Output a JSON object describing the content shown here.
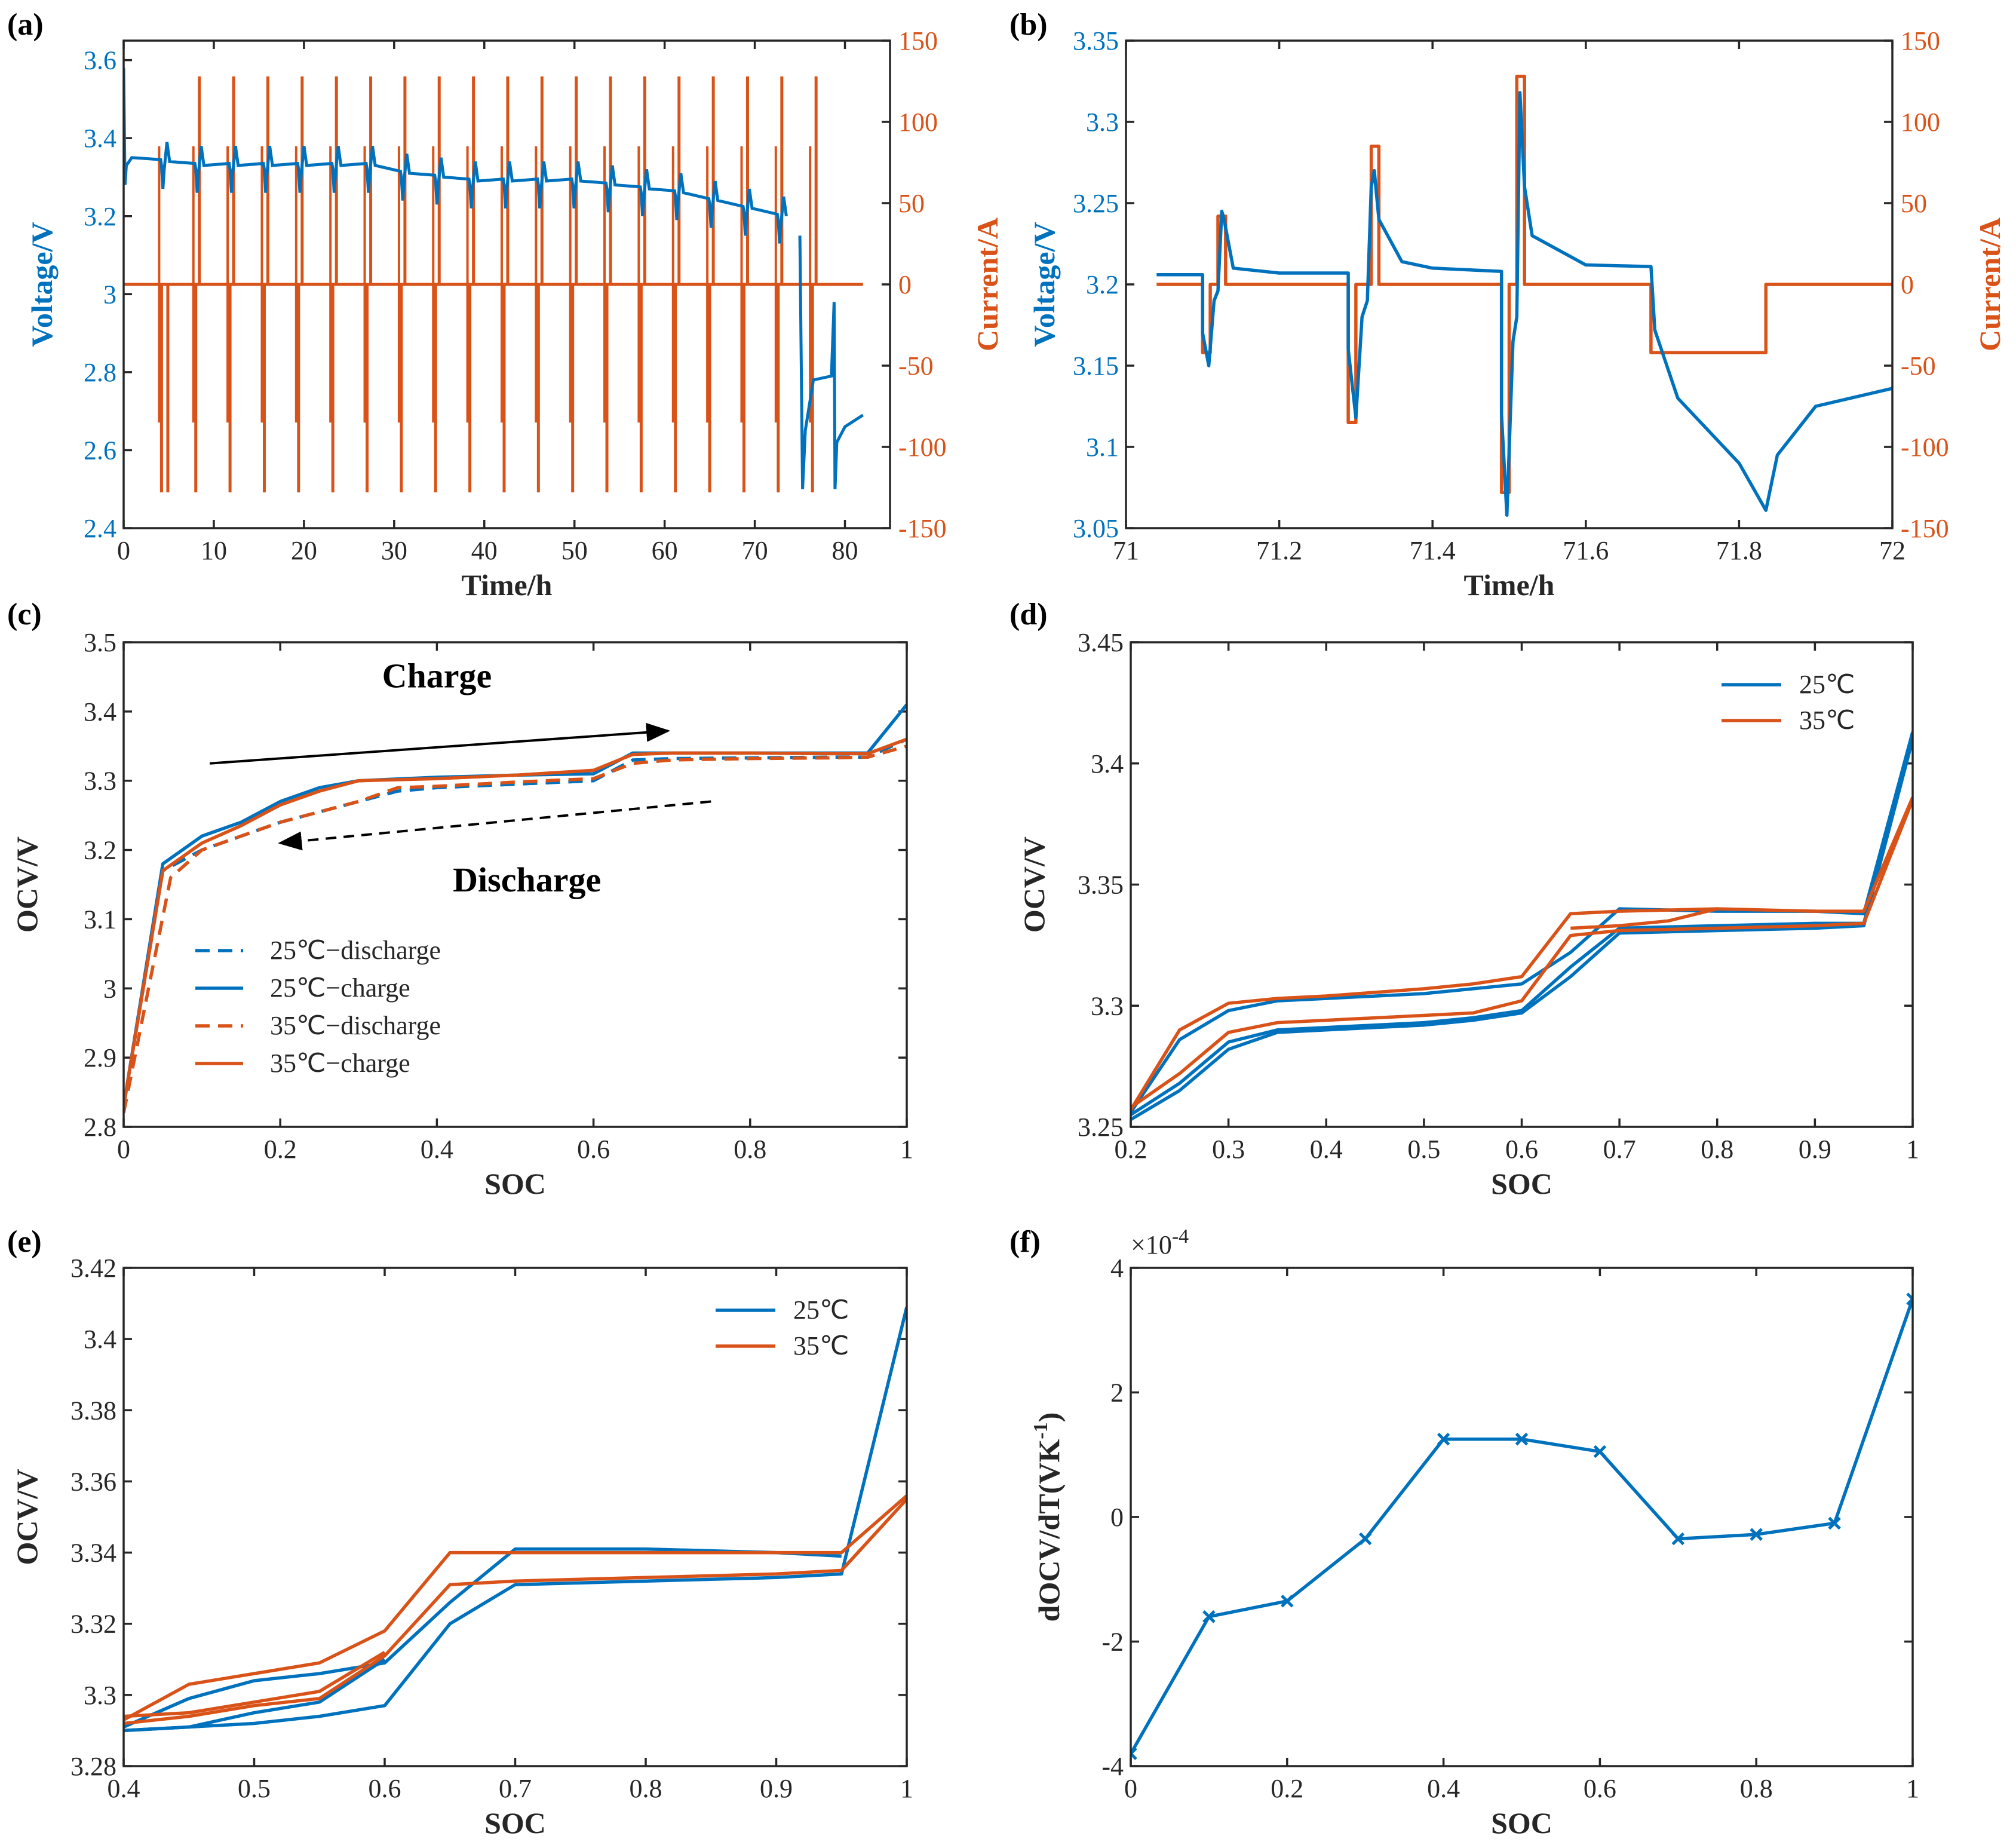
{
  "colors": {
    "blue": "#0072BD",
    "orange": "#D95319",
    "axis": "#262626"
  },
  "chart_data": [
    {
      "panel": "(a)",
      "type": "line",
      "xlabel": "Time/h",
      "ylabel": "Voltage/V",
      "ylabel_right": "Current/A",
      "xlim": [
        0,
        85
      ],
      "ylim": [
        2.4,
        3.65
      ],
      "ylim_right": [
        -150,
        150
      ],
      "xticks": [
        "0",
        "10",
        "20",
        "30",
        "40",
        "50",
        "60",
        "70",
        "80"
      ],
      "yticks": [
        "2.4",
        "2.6",
        "2.8",
        "3",
        "3.2",
        "3.4",
        "3.6"
      ],
      "yticks_right": [
        "-150",
        "-100",
        "-50",
        "0",
        "50",
        "100",
        "150"
      ],
      "pulse_times": [
        4.2,
        8,
        11.8,
        15.6,
        19.4,
        23.2,
        27,
        30.8,
        34.6,
        38.4,
        42.2,
        46,
        49.8,
        53.6,
        57.4,
        61.2,
        65,
        68.8,
        72.6,
        76.4
      ],
      "pulse_current_max": 128,
      "pulse_current_min": -128,
      "series": [
        {
          "name": "Voltage",
          "axis": "left",
          "x": [
            0,
            4.2,
            8,
            11.8,
            15.6,
            19.4,
            23.2,
            27,
            30.8,
            34.6,
            38.4,
            42.2,
            46,
            49.8,
            53.6,
            57.4,
            61.2,
            65,
            68.8,
            72.6,
            75.2,
            78.8,
            82
          ],
          "y": [
            3.35,
            3.34,
            3.33,
            3.33,
            3.33,
            3.33,
            3.33,
            3.33,
            3.31,
            3.3,
            3.29,
            3.29,
            3.29,
            3.29,
            3.28,
            3.27,
            3.26,
            3.24,
            3.22,
            3.2,
            3.15,
            2.65,
            2.68
          ]
        },
        {
          "name": "Current",
          "axis": "right",
          "x": [
            0,
            82
          ],
          "y": [
            0,
            0
          ]
        }
      ]
    },
    {
      "panel": "(b)",
      "type": "line",
      "xlabel": "Time/h",
      "ylabel": "Voltage/V",
      "ylabel_right": "Current/A",
      "xlim": [
        71,
        72
      ],
      "ylim": [
        3.05,
        3.35
      ],
      "ylim_right": [
        -150,
        150
      ],
      "xticks": [
        "71",
        "71.2",
        "71.4",
        "71.6",
        "71.8",
        "72"
      ],
      "yticks": [
        "3.05",
        "3.1",
        "3.15",
        "3.2",
        "3.25",
        "3.3",
        "3.35"
      ],
      "yticks_right": [
        "-150",
        "-100",
        "-50",
        "0",
        "50",
        "100",
        "150"
      ],
      "series": [
        {
          "name": "Voltage",
          "axis": "left",
          "x": [
            71.04,
            71.1,
            71.1,
            71.108,
            71.115,
            71.12,
            71.125,
            71.128,
            71.14,
            71.2,
            71.29,
            71.29,
            71.3,
            71.308,
            71.315,
            71.32,
            71.324,
            71.33,
            71.36,
            71.4,
            71.49,
            71.49,
            71.497,
            71.505,
            71.51,
            71.514,
            71.52,
            71.53,
            71.6,
            71.685,
            71.69,
            71.72,
            71.8,
            71.835,
            71.85,
            71.9,
            72
          ],
          "y": [
            3.206,
            3.206,
            3.17,
            3.15,
            3.19,
            3.196,
            3.245,
            3.24,
            3.21,
            3.207,
            3.207,
            3.16,
            3.118,
            3.18,
            3.19,
            3.26,
            3.27,
            3.24,
            3.214,
            3.21,
            3.208,
            3.12,
            3.058,
            3.165,
            3.18,
            3.318,
            3.26,
            3.23,
            3.212,
            3.211,
            3.172,
            3.13,
            3.09,
            3.061,
            3.095,
            3.125,
            3.136
          ]
        },
        {
          "name": "Current",
          "axis": "right",
          "x": [
            71.04,
            71.1,
            71.1,
            71.11,
            71.11,
            71.12,
            71.12,
            71.13,
            71.13,
            71.29,
            71.29,
            71.3,
            71.3,
            71.32,
            71.32,
            71.33,
            71.33,
            71.49,
            71.49,
            71.5,
            71.5,
            71.51,
            71.51,
            71.52,
            71.52,
            71.685,
            71.685,
            71.835,
            71.835,
            72
          ],
          "y": [
            0,
            0,
            -42,
            -42,
            0,
            0,
            42,
            42,
            0,
            0,
            -85,
            -85,
            0,
            0,
            85,
            85,
            0,
            0,
            -128,
            -128,
            0,
            0,
            128,
            128,
            0,
            0,
            -42,
            -42,
            0,
            0
          ]
        }
      ]
    },
    {
      "panel": "(c)",
      "type": "line",
      "xlabel": "SOC",
      "ylabel": "OCV/V",
      "xlim": [
        0,
        1
      ],
      "ylim": [
        2.8,
        3.5
      ],
      "xticks": [
        "0",
        "0.2",
        "0.4",
        "0.6",
        "0.8",
        "1"
      ],
      "yticks": [
        "2.8",
        "2.9",
        "3",
        "3.1",
        "3.2",
        "3.3",
        "3.4",
        "3.5"
      ],
      "annotations": [
        {
          "text": "Charge"
        },
        {
          "text": "Discharge"
        }
      ],
      "legend": [
        "25℃−discharge",
        "25℃−charge",
        "35℃−discharge",
        "35℃−charge"
      ],
      "series": [
        {
          "name": "25℃−discharge",
          "style": "dashed",
          "x": [
            0,
            0.05,
            0.1,
            0.2,
            0.3,
            0.35,
            0.4,
            0.5,
            0.6,
            0.65,
            0.7,
            0.8,
            0.9,
            0.95,
            1
          ],
          "y": [
            2.83,
            3.17,
            3.2,
            3.24,
            3.27,
            3.285,
            3.29,
            3.295,
            3.3,
            3.33,
            3.332,
            3.333,
            3.334,
            3.334,
            3.36
          ]
        },
        {
          "name": "25℃−charge",
          "style": "solid",
          "x": [
            0,
            0.05,
            0.1,
            0.15,
            0.2,
            0.25,
            0.3,
            0.4,
            0.5,
            0.6,
            0.65,
            0.7,
            0.8,
            0.9,
            0.95,
            1
          ],
          "y": [
            2.83,
            3.18,
            3.22,
            3.24,
            3.27,
            3.29,
            3.3,
            3.305,
            3.308,
            3.31,
            3.34,
            3.34,
            3.34,
            3.34,
            3.34,
            3.41
          ]
        },
        {
          "name": "35℃−discharge",
          "style": "dashed",
          "x": [
            0,
            0.06,
            0.1,
            0.2,
            0.3,
            0.35,
            0.4,
            0.5,
            0.6,
            0.65,
            0.7,
            0.8,
            0.9,
            0.95,
            1
          ],
          "y": [
            2.82,
            3.16,
            3.2,
            3.24,
            3.27,
            3.29,
            3.292,
            3.298,
            3.303,
            3.325,
            3.33,
            3.332,
            3.333,
            3.334,
            3.35
          ]
        },
        {
          "name": "35℃−charge",
          "style": "solid",
          "x": [
            0,
            0.05,
            0.1,
            0.15,
            0.2,
            0.25,
            0.3,
            0.4,
            0.5,
            0.6,
            0.65,
            0.7,
            0.8,
            0.9,
            0.95,
            1
          ],
          "y": [
            2.83,
            3.17,
            3.21,
            3.235,
            3.265,
            3.285,
            3.3,
            3.303,
            3.308,
            3.315,
            3.338,
            3.34,
            3.34,
            3.339,
            3.339,
            3.36
          ]
        }
      ]
    },
    {
      "panel": "(d)",
      "type": "line",
      "xlabel": "SOC",
      "ylabel": "OCV/V",
      "xlim": [
        0.2,
        1
      ],
      "ylim": [
        3.25,
        3.45
      ],
      "xticks": [
        "0.2",
        "0.3",
        "0.4",
        "0.5",
        "0.6",
        "0.7",
        "0.8",
        "0.9",
        "1"
      ],
      "yticks": [
        "3.25",
        "3.3",
        "3.35",
        "3.4",
        "3.45"
      ],
      "legend": [
        "25℃",
        "35℃"
      ],
      "series": [
        {
          "name": "25℃",
          "x": [
            0.2,
            0.25,
            0.3,
            0.35,
            0.4,
            0.5,
            0.55,
            0.6,
            0.65,
            0.7,
            0.8,
            0.9,
            0.95,
            1
          ],
          "y": [
            3.253,
            3.265,
            3.282,
            3.289,
            3.29,
            3.292,
            3.294,
            3.297,
            3.312,
            3.33,
            3.331,
            3.332,
            3.333,
            3.41
          ]
        },
        {
          "name": "25℃",
          "x": [
            0.2,
            0.25,
            0.3,
            0.35,
            0.4,
            0.5,
            0.55,
            0.6,
            0.65,
            0.7,
            0.8,
            0.9,
            0.95,
            1
          ],
          "y": [
            3.255,
            3.268,
            3.285,
            3.29,
            3.291,
            3.293,
            3.295,
            3.298,
            3.316,
            3.332,
            3.333,
            3.334,
            3.334,
            3.41
          ]
        },
        {
          "name": "25℃",
          "x": [
            0.2,
            0.25,
            0.3,
            0.35,
            0.4,
            0.5,
            0.55,
            0.6,
            0.65,
            0.7,
            0.8,
            0.9,
            0.95,
            1
          ],
          "y": [
            3.256,
            3.286,
            3.298,
            3.302,
            3.303,
            3.305,
            3.307,
            3.309,
            3.322,
            3.34,
            3.339,
            3.339,
            3.338,
            3.413
          ]
        },
        {
          "name": "35℃",
          "x": [
            0.2,
            0.25,
            0.3,
            0.35,
            0.4,
            0.5,
            0.55,
            0.6,
            0.65,
            0.7,
            0.8,
            0.9,
            0.95,
            1
          ],
          "y": [
            3.257,
            3.29,
            3.301,
            3.303,
            3.304,
            3.307,
            3.309,
            3.312,
            3.338,
            3.339,
            3.34,
            3.339,
            3.339,
            3.386
          ]
        },
        {
          "name": "35℃",
          "x": [
            0.2,
            0.25,
            0.3,
            0.35,
            0.4,
            0.5,
            0.55,
            0.6,
            0.65,
            0.7,
            0.8,
            0.9,
            0.95,
            1
          ],
          "y": [
            3.258,
            3.272,
            3.289,
            3.293,
            3.294,
            3.296,
            3.297,
            3.302,
            3.329,
            3.331,
            3.332,
            3.333,
            3.334,
            3.385
          ]
        },
        {
          "name": "35℃",
          "x": [
            0.65,
            0.7,
            0.75,
            0.8
          ],
          "y": [
            3.332,
            3.333,
            3.335,
            3.34
          ]
        }
      ]
    },
    {
      "panel": "(e)",
      "type": "line",
      "xlabel": "SOC",
      "ylabel": "OCV/V",
      "xlim": [
        0.4,
        1
      ],
      "ylim": [
        3.28,
        3.42
      ],
      "xticks": [
        "0.4",
        "0.5",
        "0.6",
        "0.7",
        "0.8",
        "0.9",
        "1"
      ],
      "yticks": [
        "3.28",
        "3.3",
        "3.32",
        "3.34",
        "3.36",
        "3.38",
        "3.4",
        "3.42"
      ],
      "legend": [
        "25℃",
        "35℃"
      ],
      "series": [
        {
          "name": "25℃",
          "x": [
            0.4,
            0.45,
            0.5,
            0.55,
            0.6,
            0.65,
            0.7,
            0.8,
            0.9,
            0.95,
            1
          ],
          "y": [
            3.29,
            3.291,
            3.292,
            3.294,
            3.297,
            3.32,
            3.331,
            3.332,
            3.333,
            3.334,
            3.409
          ]
        },
        {
          "name": "25℃",
          "x": [
            0.4,
            0.45,
            0.5,
            0.55,
            0.6,
            0.65,
            0.7,
            0.8,
            0.9,
            0.95
          ],
          "y": [
            3.291,
            3.299,
            3.304,
            3.306,
            3.309,
            3.326,
            3.341,
            3.341,
            3.34,
            3.339
          ]
        },
        {
          "name": "25℃",
          "x": [
            0.4,
            0.45,
            0.5,
            0.55,
            0.6
          ],
          "y": [
            3.29,
            3.291,
            3.295,
            3.298,
            3.31
          ]
        },
        {
          "name": "35℃",
          "x": [
            0.4,
            0.45,
            0.5,
            0.55,
            0.6,
            0.65,
            0.7,
            0.8,
            0.9,
            0.95,
            1
          ],
          "y": [
            3.293,
            3.303,
            3.306,
            3.309,
            3.318,
            3.34,
            3.34,
            3.34,
            3.34,
            3.34,
            3.356
          ]
        },
        {
          "name": "35℃",
          "x": [
            0.4,
            0.45,
            0.5,
            0.55,
            0.6,
            0.65,
            0.7,
            0.8,
            0.9,
            0.95,
            1
          ],
          "y": [
            3.292,
            3.294,
            3.297,
            3.299,
            3.311,
            3.331,
            3.332,
            3.333,
            3.334,
            3.335,
            3.355
          ]
        },
        {
          "name": "35℃",
          "x": [
            0.4,
            0.45,
            0.5,
            0.55,
            0.6
          ],
          "y": [
            3.294,
            3.295,
            3.298,
            3.301,
            3.312
          ]
        }
      ]
    },
    {
      "panel": "(f)",
      "type": "line",
      "xlabel": "SOC",
      "ylabel": "dOCV/dT(VK",
      "ylabel_sup": "-1",
      "ylabel_close": ")",
      "exponent_base": "×10",
      "exponent_power": "-4",
      "xlim": [
        0,
        1
      ],
      "ylim": [
        -4,
        4
      ],
      "xticks": [
        "0",
        "0.2",
        "0.4",
        "0.6",
        "0.8",
        "1"
      ],
      "yticks": [
        "-4",
        "-2",
        "0",
        "2",
        "4"
      ],
      "series": [
        {
          "name": "dOCV/dT",
          "marker": "x",
          "x": [
            0,
            0.1,
            0.2,
            0.3,
            0.4,
            0.5,
            0.6,
            0.7,
            0.8,
            0.9,
            1
          ],
          "y": [
            -3.8,
            -1.6,
            -1.35,
            -0.35,
            1.25,
            1.25,
            1.05,
            -0.35,
            -0.28,
            -0.1,
            3.5
          ]
        }
      ]
    }
  ]
}
